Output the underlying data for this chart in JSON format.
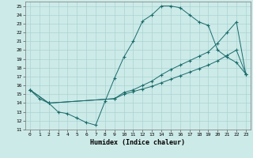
{
  "xlabel": "Humidex (Indice chaleur)",
  "xlim": [
    -0.5,
    23.5
  ],
  "ylim": [
    11,
    25.5
  ],
  "yticks": [
    11,
    12,
    13,
    14,
    15,
    16,
    17,
    18,
    19,
    20,
    21,
    22,
    23,
    24,
    25
  ],
  "xticks": [
    0,
    1,
    2,
    3,
    4,
    5,
    6,
    7,
    8,
    9,
    10,
    11,
    12,
    13,
    14,
    15,
    16,
    17,
    18,
    19,
    20,
    21,
    22,
    23
  ],
  "bg_color": "#cceae8",
  "line_color": "#1a6b6b",
  "grid_color": "#aad4d2",
  "line1": {
    "x": [
      0,
      1,
      2,
      3,
      4,
      5,
      6,
      7,
      8,
      9,
      10,
      11,
      12,
      13,
      14,
      15,
      16,
      17,
      18,
      19,
      20,
      21,
      22,
      23
    ],
    "y": [
      15.5,
      14.5,
      14.0,
      13.0,
      12.8,
      12.3,
      11.8,
      11.5,
      14.2,
      16.8,
      19.2,
      21.0,
      23.3,
      24.0,
      25.0,
      25.0,
      24.8,
      24.0,
      23.2,
      22.8,
      20.0,
      19.2,
      18.6,
      17.3
    ]
  },
  "line2": {
    "x": [
      0,
      2,
      9,
      10,
      11,
      12,
      13,
      14,
      15,
      16,
      17,
      18,
      19,
      20,
      21,
      22,
      23
    ],
    "y": [
      15.5,
      14.0,
      14.5,
      15.2,
      15.5,
      16.0,
      16.5,
      17.2,
      17.8,
      18.3,
      18.8,
      19.3,
      19.8,
      20.8,
      22.0,
      23.2,
      17.3
    ]
  },
  "line3": {
    "x": [
      0,
      2,
      9,
      10,
      11,
      12,
      13,
      14,
      15,
      16,
      17,
      18,
      19,
      20,
      21,
      22,
      23
    ],
    "y": [
      15.5,
      14.0,
      14.5,
      15.0,
      15.3,
      15.6,
      15.9,
      16.3,
      16.7,
      17.1,
      17.5,
      17.9,
      18.3,
      18.8,
      19.4,
      20.0,
      17.3
    ]
  }
}
